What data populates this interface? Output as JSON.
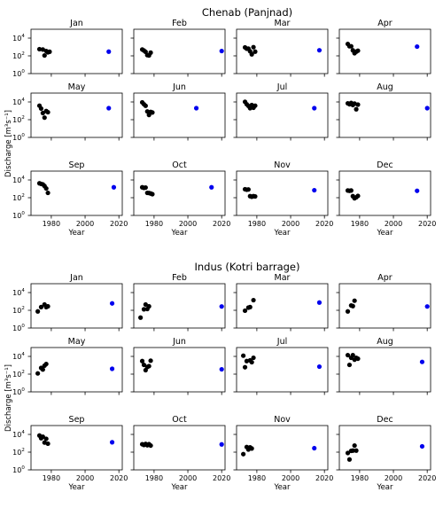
{
  "ylabel": "Discharge [m³s⁻¹]",
  "xlabel": "Year",
  "chart_data": [
    {
      "type": "scatter",
      "title": "Chenab (Panjnad)",
      "xlabel": "Year",
      "ylabel": "Discharge [m³s⁻¹]",
      "xlim": [
        1968,
        2022
      ],
      "ylim": [
        1,
        100000
      ],
      "yscale": "log",
      "xticks": [
        1980,
        2000,
        2020
      ],
      "yticks": [
        {
          "value": 1,
          "label": "10",
          "exp": "0"
        },
        {
          "value": 100,
          "label": "10",
          "exp": "2"
        },
        {
          "value": 10000,
          "label": "10",
          "exp": "4"
        }
      ],
      "series_colors": {
        "historical": "#000000",
        "recent": "#0000ee"
      },
      "panels": [
        {
          "month": "Jan",
          "historical": [
            [
              1973,
              570
            ],
            [
              1975,
              520
            ],
            [
              1976,
              110
            ],
            [
              1977,
              350
            ],
            [
              1978,
              250
            ],
            [
              1979,
              290
            ]
          ],
          "recent": [
            [
              2014,
              300
            ]
          ]
        },
        {
          "month": "Feb",
          "historical": [
            [
              1973,
              520
            ],
            [
              1974,
              400
            ],
            [
              1975,
              280
            ],
            [
              1976,
              120
            ],
            [
              1977,
              110
            ],
            [
              1978,
              230
            ]
          ],
          "recent": [
            [
              2020,
              350
            ]
          ]
        },
        {
          "month": "Mar",
          "historical": [
            [
              1973,
              900
            ],
            [
              1974,
              650
            ],
            [
              1975,
              650
            ],
            [
              1976,
              330
            ],
            [
              1977,
              150
            ],
            [
              1978,
              950
            ],
            [
              1979,
              300
            ]
          ],
          "recent": [
            [
              2017,
              430
            ]
          ]
        },
        {
          "month": "Apr",
          "historical": [
            [
              1973,
              2200
            ],
            [
              1974,
              1200
            ],
            [
              1975,
              1200
            ],
            [
              1976,
              420
            ],
            [
              1977,
              200
            ],
            [
              1978,
              300
            ],
            [
              1979,
              380
            ]
          ],
          "recent": [
            [
              2014,
              1100
            ]
          ]
        },
        {
          "month": "May",
          "historical": [
            [
              1973,
              3800
            ],
            [
              1974,
              1800
            ],
            [
              1975,
              560
            ],
            [
              1976,
              170
            ],
            [
              1977,
              950
            ],
            [
              1978,
              700
            ]
          ],
          "recent": [
            [
              2014,
              2000
            ]
          ]
        },
        {
          "month": "Jun",
          "historical": [
            [
              1973,
              9000
            ],
            [
              1974,
              5500
            ],
            [
              1975,
              3700
            ],
            [
              1976,
              850
            ],
            [
              1977,
              340
            ],
            [
              1978,
              750
            ],
            [
              1979,
              650
            ]
          ],
          "recent": [
            [
              2005,
              2000
            ]
          ]
        },
        {
          "month": "Jul",
          "historical": [
            [
              1973,
              10500
            ],
            [
              1974,
              5500
            ],
            [
              1975,
              3600
            ],
            [
              1976,
              2000
            ],
            [
              1977,
              4500
            ],
            [
              1978,
              2200
            ],
            [
              1979,
              3800
            ]
          ],
          "recent": [
            [
              2014,
              2000
            ]
          ]
        },
        {
          "month": "Aug",
          "historical": [
            [
              1973,
              7000
            ],
            [
              1974,
              5500
            ],
            [
              1975,
              7800
            ],
            [
              1976,
              4500
            ],
            [
              1977,
              6500
            ],
            [
              1978,
              1500
            ],
            [
              1979,
              5000
            ]
          ],
          "recent": [
            [
              2020,
              2000
            ]
          ]
        },
        {
          "month": "Sep",
          "historical": [
            [
              1973,
              4200
            ],
            [
              1974,
              3600
            ],
            [
              1975,
              3200
            ],
            [
              1976,
              2100
            ],
            [
              1977,
              1100
            ],
            [
              1978,
              350
            ]
          ],
          "recent": [
            [
              2017,
              1500
            ]
          ]
        },
        {
          "month": "Oct",
          "historical": [
            [
              1973,
              1500
            ],
            [
              1974,
              1300
            ],
            [
              1975,
              1400
            ],
            [
              1976,
              350
            ],
            [
              1977,
              340
            ],
            [
              1978,
              300
            ],
            [
              1979,
              250
            ]
          ],
          "recent": [
            [
              2014,
              1500
            ]
          ]
        },
        {
          "month": "Nov",
          "historical": [
            [
              1973,
              900
            ],
            [
              1974,
              800
            ],
            [
              1975,
              850
            ],
            [
              1976,
              150
            ],
            [
              1977,
              130
            ],
            [
              1978,
              150
            ],
            [
              1979,
              140
            ]
          ],
          "recent": [
            [
              2014,
              700
            ]
          ]
        },
        {
          "month": "Dec",
          "historical": [
            [
              1973,
              650
            ],
            [
              1974,
              600
            ],
            [
              1975,
              650
            ],
            [
              1976,
              150
            ],
            [
              1977,
              85
            ],
            [
              1978,
              110
            ],
            [
              1979,
              160
            ]
          ],
          "recent": [
            [
              2014,
              600
            ]
          ]
        }
      ]
    },
    {
      "type": "scatter",
      "title": "Indus (Kotri barrage)",
      "xlabel": "Year",
      "ylabel": "Discharge [m³s⁻¹]",
      "xlim": [
        1968,
        2022
      ],
      "ylim": [
        1,
        100000
      ],
      "yscale": "log",
      "xticks": [
        1980,
        2000,
        2020
      ],
      "yticks": [
        {
          "value": 1,
          "label": "10",
          "exp": "0"
        },
        {
          "value": 100,
          "label": "10",
          "exp": "2"
        },
        {
          "value": 10000,
          "label": "10",
          "exp": "4"
        }
      ],
      "series_colors": {
        "historical": "#000000",
        "recent": "#0000ee"
      },
      "panels": [
        {
          "month": "Jan",
          "historical": [
            [
              1972,
              75
            ],
            [
              1974,
              230
            ],
            [
              1976,
              450
            ],
            [
              1977,
              230
            ],
            [
              1978,
              280
            ]
          ],
          "recent": [
            [
              2016,
              600
            ]
          ]
        },
        {
          "month": "Feb",
          "historical": [
            [
              1972,
              15
            ],
            [
              1974,
              130
            ],
            [
              1975,
              450
            ],
            [
              1976,
              140
            ],
            [
              1977,
              280
            ]
          ],
          "recent": [
            [
              2020,
              270
            ]
          ]
        },
        {
          "month": "Mar",
          "historical": [
            [
              1973,
              90
            ],
            [
              1975,
              200
            ],
            [
              1976,
              230
            ],
            [
              1978,
              1400
            ]
          ],
          "recent": [
            [
              2017,
              750
            ]
          ]
        },
        {
          "month": "Apr",
          "historical": [
            [
              1973,
              75
            ],
            [
              1975,
              350
            ],
            [
              1976,
              300
            ],
            [
              1977,
              1200
            ]
          ],
          "recent": [
            [
              2020,
              270
            ]
          ]
        },
        {
          "month": "May",
          "historical": [
            [
              1972,
              120
            ],
            [
              1974,
              500
            ],
            [
              1975,
              330
            ],
            [
              1976,
              900
            ],
            [
              1977,
              1400
            ]
          ],
          "recent": [
            [
              2016,
              400
            ]
          ]
        },
        {
          "month": "Jun",
          "historical": [
            [
              1973,
              3000
            ],
            [
              1974,
              1100
            ],
            [
              1975,
              280
            ],
            [
              1976,
              650
            ],
            [
              1977,
              800
            ],
            [
              1978,
              3300
            ]
          ],
          "recent": [
            [
              2020,
              350
            ]
          ]
        },
        {
          "month": "Jul",
          "historical": [
            [
              1972,
              12000
            ],
            [
              1973,
              600
            ],
            [
              1974,
              3000
            ],
            [
              1976,
              3600
            ],
            [
              1977,
              2200
            ],
            [
              1978,
              7000
            ]
          ],
          "recent": [
            [
              2017,
              700
            ]
          ]
        },
        {
          "month": "Aug",
          "historical": [
            [
              1973,
              14000
            ],
            [
              1974,
              1100
            ],
            [
              1975,
              7000
            ],
            [
              1976,
              14000
            ],
            [
              1977,
              4300
            ],
            [
              1978,
              7000
            ],
            [
              1979,
              5500
            ]
          ],
          "recent": [
            [
              2017,
              2400
            ]
          ]
        },
        {
          "month": "Sep",
          "historical": [
            [
              1973,
              7500
            ],
            [
              1974,
              3700
            ],
            [
              1975,
              5500
            ],
            [
              1976,
              1200
            ],
            [
              1977,
              3200
            ],
            [
              1978,
              900
            ]
          ],
          "recent": [
            [
              2016,
              1300
            ]
          ]
        },
        {
          "month": "Oct",
          "historical": [
            [
              1973,
              780
            ],
            [
              1974,
              650
            ],
            [
              1975,
              850
            ],
            [
              1976,
              600
            ],
            [
              1977,
              800
            ],
            [
              1978,
              550
            ]
          ],
          "recent": [
            [
              2020,
              750
            ]
          ]
        },
        {
          "month": "Nov",
          "historical": [
            [
              1972,
              60
            ],
            [
              1974,
              380
            ],
            [
              1975,
              200
            ],
            [
              1976,
              350
            ],
            [
              1977,
              260
            ]
          ],
          "recent": [
            [
              2014,
              280
            ]
          ]
        },
        {
          "month": "Dec",
          "historical": [
            [
              1973,
              80
            ],
            [
              1974,
              15
            ],
            [
              1975,
              140
            ],
            [
              1976,
              150
            ],
            [
              1977,
              550
            ],
            [
              1978,
              150
            ]
          ],
          "recent": [
            [
              2017,
              450
            ]
          ]
        }
      ]
    }
  ]
}
